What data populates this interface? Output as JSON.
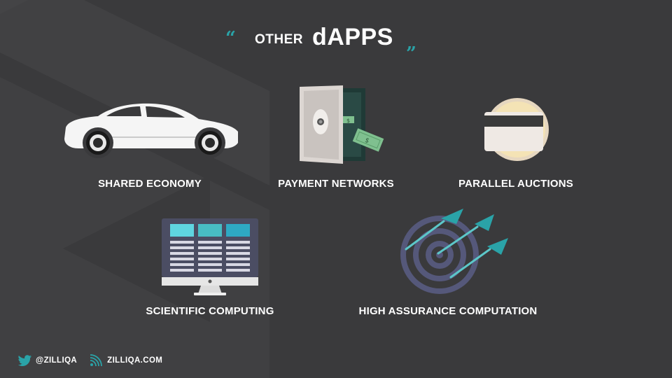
{
  "title": {
    "open_quote": "“",
    "prefix": "OTHER",
    "main": "dAPPS",
    "close_quote": "”"
  },
  "items": [
    {
      "label": "SHARED ECONOMY",
      "icon": "car-icon"
    },
    {
      "label": "PAYMENT NETWORKS",
      "icon": "safe-icon"
    },
    {
      "label": "PARALLEL AUCTIONS",
      "icon": "credit-card-icon"
    },
    {
      "label": "SCIENTIFIC COMPUTING",
      "icon": "monitor-icon"
    },
    {
      "label": "HIGH ASSURANCE COMPUTATION",
      "icon": "target-darts-icon"
    }
  ],
  "footer": {
    "twitter_handle": "@ZILLIQA",
    "website": "ZILLIQA.COM"
  },
  "colors": {
    "background": "#3a3a3c",
    "accent": "#2aa3a8",
    "text": "#ffffff"
  }
}
